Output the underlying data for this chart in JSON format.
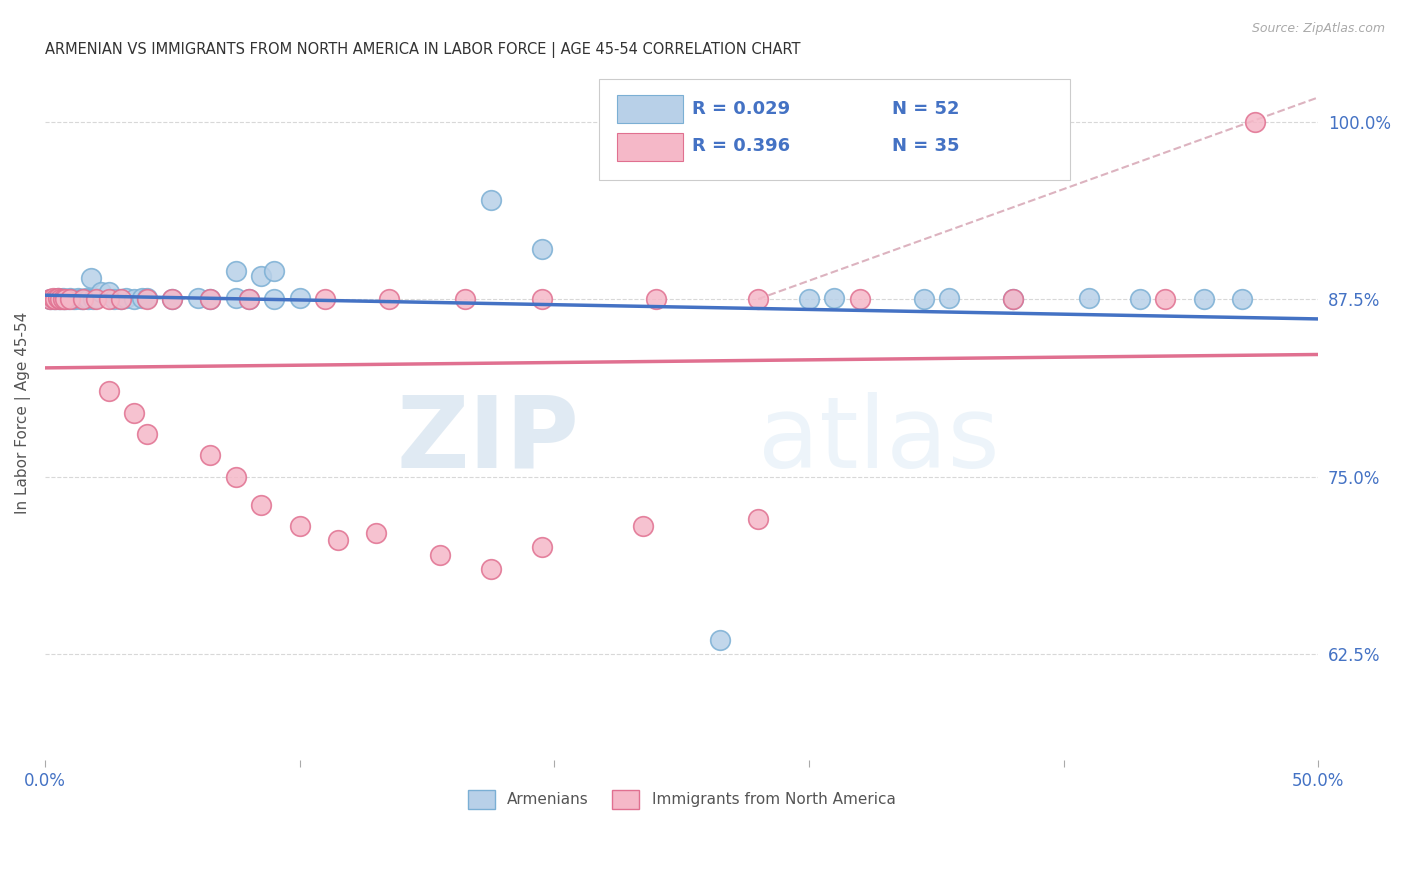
{
  "title": "ARMENIAN VS IMMIGRANTS FROM NORTH AMERICA IN LABOR FORCE | AGE 45-54 CORRELATION CHART",
  "source": "Source: ZipAtlas.com",
  "ylabel": "In Labor Force | Age 45-54",
  "xlim": [
    0.0,
    0.5
  ],
  "ylim": [
    0.55,
    1.04
  ],
  "xticks": [
    0.0,
    0.1,
    0.2,
    0.3,
    0.4,
    0.5
  ],
  "xticklabels": [
    "0.0%",
    "",
    "",
    "",
    "",
    "50.0%"
  ],
  "yticks_right": [
    0.625,
    0.75,
    0.875,
    1.0
  ],
  "ytick_right_labels": [
    "62.5%",
    "75.0%",
    "87.5%",
    "100.0%"
  ],
  "blue_color": "#b8d0e8",
  "pink_color": "#f5b8c8",
  "blue_edge": "#7bafd4",
  "pink_edge": "#e07090",
  "trend_blue": "#4472c4",
  "trend_pink": "#e07090",
  "diag_color": "#d0a0a8",
  "legend_R_blue": "0.029",
  "legend_N_blue": "52",
  "legend_R_pink": "0.396",
  "legend_N_pink": "35",
  "legend_label_blue": "Armenians",
  "legend_label_pink": "Immigrants from North America",
  "watermark_zip": "ZIP",
  "watermark_atlas": "atlas",
  "blue_x": [
    0.005,
    0.007,
    0.008,
    0.01,
    0.012,
    0.013,
    0.015,
    0.016,
    0.017,
    0.018,
    0.02,
    0.022,
    0.024,
    0.026,
    0.028,
    0.03,
    0.032,
    0.035,
    0.038,
    0.04,
    0.044,
    0.047,
    0.05,
    0.055,
    0.06,
    0.065,
    0.07,
    0.075,
    0.08,
    0.085,
    0.09,
    0.1,
    0.11,
    0.12,
    0.135,
    0.15,
    0.175,
    0.195,
    0.215,
    0.235,
    0.27,
    0.305,
    0.33,
    0.355,
    0.37,
    0.39,
    0.415,
    0.43,
    0.445,
    0.46,
    0.475,
    0.49
  ],
  "blue_y": [
    0.875,
    0.875,
    0.876,
    0.875,
    0.876,
    0.875,
    0.875,
    0.876,
    0.875,
    0.895,
    0.876,
    0.875,
    0.88,
    0.88,
    0.875,
    0.876,
    0.875,
    0.875,
    0.875,
    0.895,
    0.876,
    0.876,
    0.875,
    0.875,
    0.876,
    0.875,
    0.876,
    0.875,
    0.875,
    0.89,
    0.875,
    0.875,
    0.876,
    0.875,
    0.875,
    0.876,
    0.947,
    0.916,
    0.875,
    0.875,
    0.876,
    0.875,
    0.875,
    0.875,
    0.876,
    0.876,
    0.875,
    0.876,
    0.876,
    0.876,
    0.876,
    0.876
  ],
  "pink_x": [
    0.005,
    0.007,
    0.008,
    0.01,
    0.013,
    0.016,
    0.019,
    0.022,
    0.026,
    0.03,
    0.035,
    0.04,
    0.046,
    0.052,
    0.058,
    0.065,
    0.075,
    0.085,
    0.095,
    0.11,
    0.125,
    0.14,
    0.16,
    0.185,
    0.21,
    0.235,
    0.265,
    0.295,
    0.33,
    0.38,
    0.44,
    0.48,
    0.49,
    0.495,
    0.5
  ],
  "pink_y": [
    0.875,
    0.875,
    0.875,
    0.875,
    0.875,
    0.875,
    0.875,
    0.875,
    0.875,
    0.875,
    0.875,
    0.875,
    0.875,
    0.875,
    0.875,
    0.875,
    0.875,
    0.875,
    0.875,
    0.875,
    0.875,
    0.875,
    0.875,
    0.875,
    0.875,
    0.875,
    0.875,
    0.875,
    0.875,
    0.875,
    0.875,
    0.875,
    0.875,
    0.875,
    1.0
  ]
}
